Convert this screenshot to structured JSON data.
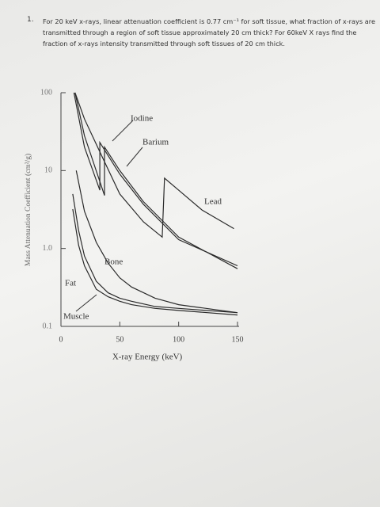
{
  "question": {
    "number": "1.",
    "text": "For 20 keV x-rays, linear attenuation coefficient is 0.77 cm⁻¹ for soft tissue, what fraction of x-rays are transmitted through a region of soft tissue approximately 20 cm thick? For 60keV X rays find the fraction of x-rays intensity transmitted through soft tissues of 20 cm thick."
  },
  "chart_data": {
    "type": "line",
    "x_label": "X-ray Energy (keV)",
    "y_label": "Mass Attenuation Coefficient (cm²/g)",
    "xlim": [
      0,
      150
    ],
    "ylim": [
      0.1,
      100
    ],
    "log_y": true,
    "xticks": [
      0,
      50,
      100,
      150
    ],
    "yticks": [
      0.1,
      {
        "value": 1,
        "label": "1.0"
      },
      10,
      100
    ],
    "series": [
      {
        "name": "Lead",
        "color": "#2a2a2a",
        "x": [
          12,
          20,
          36,
          50,
          70,
          86,
          88,
          100,
          120,
          147
        ],
        "values": [
          100,
          46,
          14,
          5,
          2.2,
          1.4,
          8,
          5.6,
          3.1,
          1.8
        ]
      },
      {
        "name": "Iodine",
        "color": "#2a2a2a",
        "x": [
          11,
          20,
          33,
          33,
          50,
          70,
          100,
          150
        ],
        "values": [
          100,
          20,
          5.6,
          23,
          9,
          3.7,
          1.3,
          0.6
        ]
      },
      {
        "name": "Barium",
        "color": "#2a2a2a",
        "x": [
          12,
          20,
          37,
          37,
          50,
          70,
          100,
          150
        ],
        "values": [
          100,
          28,
          4.8,
          20,
          10,
          4,
          1.4,
          0.55
        ]
      },
      {
        "name": "Bone",
        "color": "#2a2a2a",
        "x": [
          13,
          20,
          30,
          40,
          50,
          60,
          80,
          100,
          150
        ],
        "values": [
          10,
          3,
          1.2,
          0.65,
          0.42,
          0.32,
          0.23,
          0.19,
          0.15
        ]
      },
      {
        "name": "Fat",
        "color": "#2a2a2a",
        "x": [
          10,
          15,
          20,
          30,
          40,
          50,
          60,
          80,
          100,
          150
        ],
        "values": [
          3.2,
          1.1,
          0.6,
          0.3,
          0.24,
          0.21,
          0.19,
          0.17,
          0.16,
          0.14
        ]
      },
      {
        "name": "Muscle",
        "color": "#2a2a2a",
        "x": [
          10,
          15,
          20,
          30,
          40,
          50,
          60,
          80,
          100,
          150
        ],
        "values": [
          5,
          1.7,
          0.8,
          0.38,
          0.27,
          0.23,
          0.21,
          0.18,
          0.17,
          0.15
        ]
      }
    ]
  }
}
